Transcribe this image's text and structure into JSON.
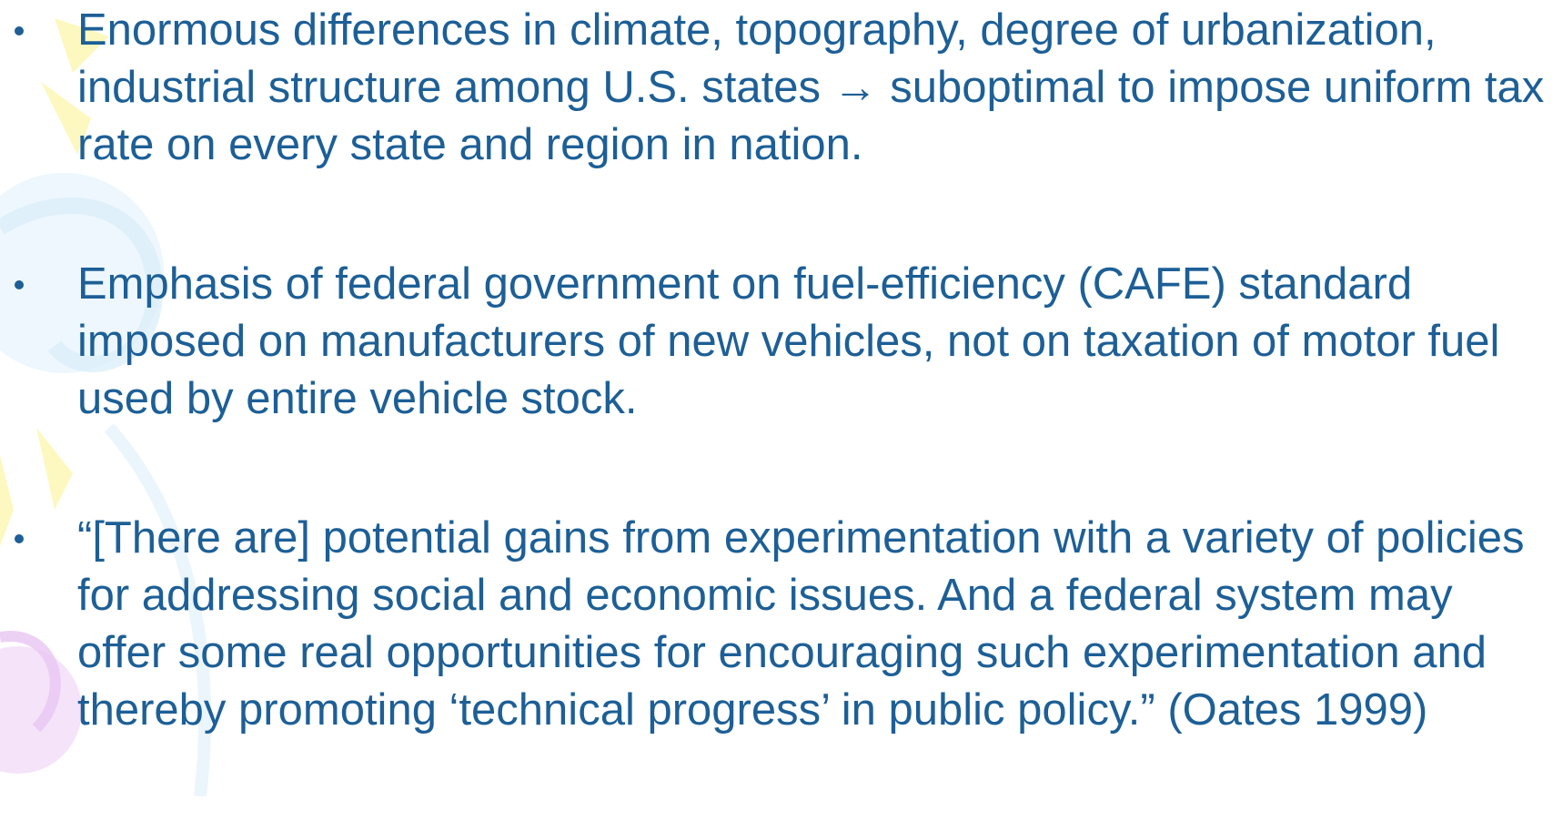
{
  "bullets": [
    "Enormous differences in climate, topography, degree of urbanization, industrial structure among U.S. states → suboptimal to impose uniform tax rate on every state and region in nation.",
    "Emphasis of federal government on fuel-efficiency (CAFE) standard imposed on manufacturers of new vehicles, not on taxation of motor fuel used by entire vehicle stock.",
    "“[There are] potential gains from experimentation with a variety of policies for addressing social and economic issues. And a federal system may offer some real opportunities for encouraging such experimentation and thereby promoting ‘technical progress’ in public policy.” (Oates 1999)"
  ]
}
